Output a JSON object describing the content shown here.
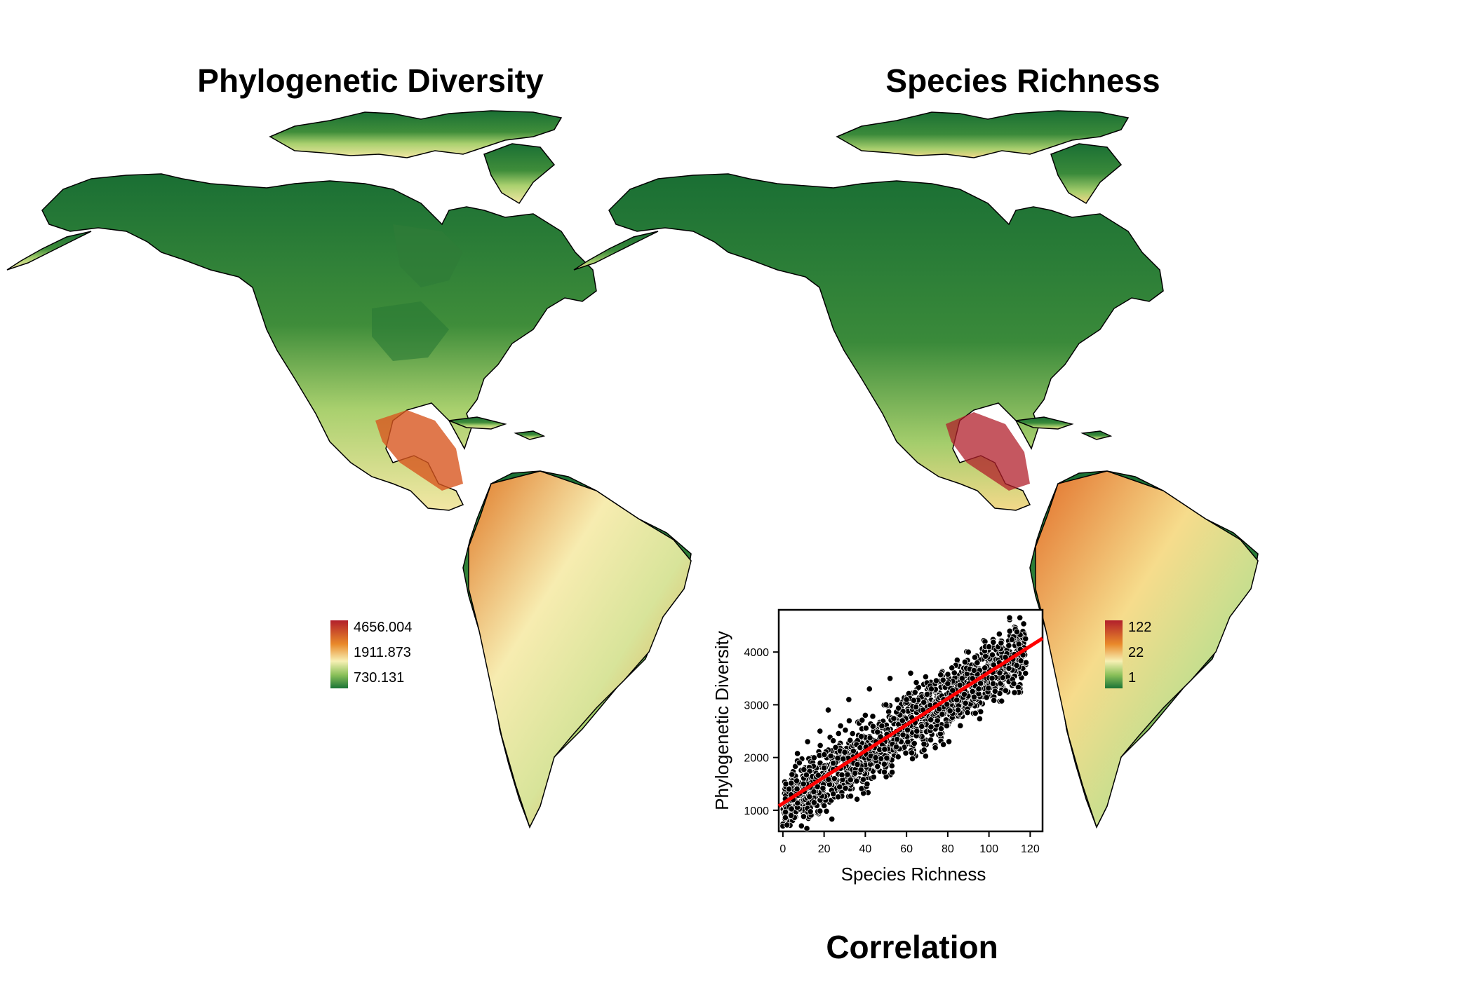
{
  "titles": {
    "pd": "Phylogenetic Diversity",
    "sr": "Species Richness",
    "correlation": "Correlation"
  },
  "colors": {
    "dark_green": "#1a7435",
    "green": "#66a83c",
    "light_green": "#b8d97a",
    "cream": "#f7f0b4",
    "yellow": "#f6d27a",
    "orange": "#e98a2a",
    "red_orange": "#d8561f",
    "dark_red": "#b21f2b",
    "regression_line": "#ff0000",
    "points": "#000000"
  },
  "legends": {
    "pd": {
      "max": "4656.004",
      "mid": "1911.873",
      "min": "730.131"
    },
    "sr": {
      "max": "122",
      "mid": "22",
      "min": "1"
    }
  },
  "chart_data": [
    {
      "type": "scatter",
      "title": "",
      "xlabel": "Species Richness",
      "ylabel": "Phylogenetic Diversity",
      "xlim": [
        -2,
        126
      ],
      "ylim": [
        600,
        4800
      ],
      "xticks": [
        0,
        20,
        40,
        60,
        80,
        100,
        120
      ],
      "yticks": [
        1000,
        2000,
        3000,
        4000
      ],
      "regression_line": {
        "x": [
          -2,
          126
        ],
        "y": [
          1080,
          4260
        ],
        "color": "#ff0000"
      },
      "point_description": "dense cloud of approx. 2500 points; PD increases with SR",
      "points": [
        [
          0,
          700
        ],
        [
          2,
          720
        ],
        [
          4,
          900
        ],
        [
          3,
          1400
        ],
        [
          5,
          1200
        ],
        [
          8,
          1900
        ],
        [
          10,
          1500
        ],
        [
          12,
          2300
        ],
        [
          15,
          1350
        ],
        [
          18,
          2500
        ],
        [
          20,
          1800
        ],
        [
          22,
          2900
        ],
        [
          25,
          1600
        ],
        [
          28,
          2600
        ],
        [
          30,
          2100
        ],
        [
          32,
          3100
        ],
        [
          35,
          1700
        ],
        [
          38,
          2400
        ],
        [
          40,
          2800
        ],
        [
          42,
          3300
        ],
        [
          45,
          2000
        ],
        [
          48,
          2600
        ],
        [
          50,
          3000
        ],
        [
          52,
          3500
        ],
        [
          55,
          2200
        ],
        [
          58,
          2700
        ],
        [
          60,
          3100
        ],
        [
          62,
          3600
        ],
        [
          65,
          2500
        ],
        [
          68,
          2900
        ],
        [
          70,
          3200
        ],
        [
          72,
          3300
        ],
        [
          75,
          2700
        ],
        [
          78,
          3100
        ],
        [
          80,
          3400
        ],
        [
          82,
          3700
        ],
        [
          85,
          2900
        ],
        [
          88,
          3200
        ],
        [
          90,
          4000
        ],
        [
          92,
          3500
        ],
        [
          95,
          3300
        ],
        [
          98,
          3700
        ],
        [
          100,
          4100
        ],
        [
          102,
          3400
        ],
        [
          105,
          3800
        ],
        [
          108,
          3900
        ],
        [
          110,
          4650
        ],
        [
          112,
          3400
        ],
        [
          115,
          4650
        ],
        [
          118,
          3800
        ]
      ]
    }
  ]
}
